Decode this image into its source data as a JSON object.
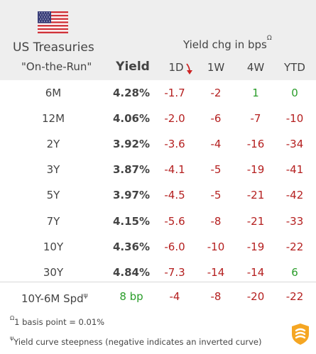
{
  "header": {
    "title": "US Treasuries",
    "subtitle": "\"On-the-Run\"",
    "yield_label": "Yield",
    "chg_label": "Yield chg in bps",
    "chg_sup": "Ω",
    "columns": [
      "1D",
      "1W",
      "4W",
      "YTD"
    ]
  },
  "rows": [
    {
      "name": "6M",
      "yield": "4.28%",
      "d1": "-1.7",
      "w1": "-2",
      "w4": "1",
      "ytd": "0"
    },
    {
      "name": "12M",
      "yield": "4.06%",
      "d1": "-2.0",
      "w1": "-6",
      "w4": "-7",
      "ytd": "-10"
    },
    {
      "name": "2Y",
      "yield": "3.92%",
      "d1": "-3.6",
      "w1": "-4",
      "w4": "-16",
      "ytd": "-34"
    },
    {
      "name": "3Y",
      "yield": "3.87%",
      "d1": "-4.1",
      "w1": "-5",
      "w4": "-19",
      "ytd": "-41"
    },
    {
      "name": "5Y",
      "yield": "3.97%",
      "d1": "-4.5",
      "w1": "-5",
      "w4": "-21",
      "ytd": "-42"
    },
    {
      "name": "7Y",
      "yield": "4.15%",
      "d1": "-5.6",
      "w1": "-8",
      "w4": "-21",
      "ytd": "-33"
    },
    {
      "name": "10Y",
      "yield": "4.36%",
      "d1": "-6.0",
      "w1": "-10",
      "w4": "-19",
      "ytd": "-22"
    },
    {
      "name": "30Y",
      "yield": "4.84%",
      "d1": "-7.3",
      "w1": "-14",
      "w4": "-14",
      "ytd": "6"
    }
  ],
  "spread": {
    "label": "10Y-6M Spd",
    "sup": "ψ",
    "yield": "8 bp",
    "d1": "-4",
    "w1": "-8",
    "w4": "-20",
    "ytd": "-22"
  },
  "notes": {
    "note1_sup": "Ω",
    "note1": "1 basis point = 0.01%",
    "note2_sup": "ψ",
    "note2": "Yield curve steepness (negative indicates an inverted curve)"
  },
  "colors": {
    "negative": "#b52020",
    "positive": "#2a9d2a",
    "header_bg": "#eeeeee",
    "logo": "#f5a623"
  },
  "icons": {
    "flag": "us-flag-icon",
    "sort": "sort-arrow-icon",
    "logo": "brand-logo-icon"
  }
}
